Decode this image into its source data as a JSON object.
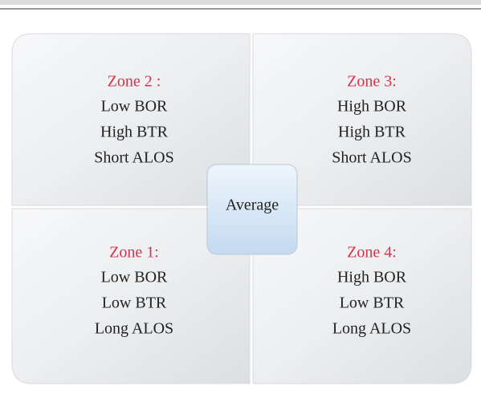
{
  "quadrants": [
    {
      "title": "Zone 2 :",
      "lines": [
        "Low BOR",
        "High BTR",
        "Short ALOS"
      ]
    },
    {
      "title": "Zone 3:",
      "lines": [
        "High BOR",
        "High BTR",
        "Short ALOS"
      ]
    },
    {
      "title": "Zone 1:",
      "lines": [
        "Low BOR",
        "Low BTR",
        "Long ALOS"
      ]
    },
    {
      "title": "Zone 4:",
      "lines": [
        "High BOR",
        "Low BTR",
        "Long ALOS"
      ]
    }
  ],
  "center": "Average"
}
